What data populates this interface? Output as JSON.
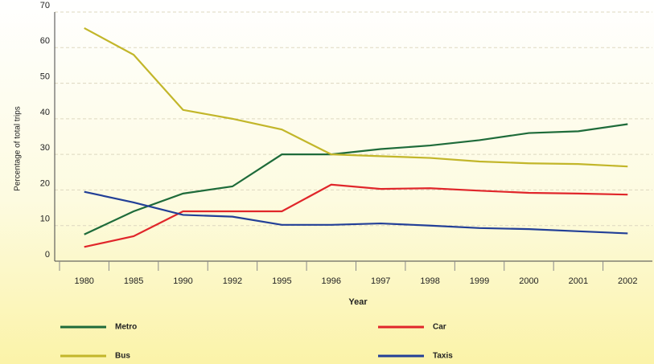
{
  "chart_data": {
    "type": "line",
    "ylabel": "Percentage of total trips",
    "xlabel": "Year",
    "categories": [
      "1980",
      "1985",
      "1990",
      "1992",
      "1995",
      "1996",
      "1997",
      "1998",
      "1999",
      "2000",
      "2001",
      "2002"
    ],
    "series": [
      {
        "name": "Metro",
        "color": "#1e6b3a",
        "values": [
          7.5,
          14,
          19,
          21,
          30,
          30,
          31.5,
          32.5,
          34,
          36,
          36.5,
          38.5
        ]
      },
      {
        "name": "Car",
        "color": "#e0262a",
        "values": [
          4,
          7,
          14,
          14,
          14,
          21.5,
          20.3,
          20.5,
          19.8,
          19.2,
          19,
          18.7
        ]
      },
      {
        "name": "Bus",
        "color": "#c2b62a",
        "values": [
          65.5,
          58,
          42.5,
          40,
          37,
          30,
          29.5,
          29,
          28,
          27.5,
          27.3,
          26.6
        ]
      },
      {
        "name": "Taxis",
        "color": "#223f97",
        "values": [
          19.5,
          16.5,
          13,
          12.5,
          10.2,
          10.2,
          10.6,
          10,
          9.3,
          9,
          8.4,
          7.8
        ]
      }
    ],
    "ylim": [
      0,
      70
    ],
    "yticks": [
      0,
      10,
      20,
      30,
      40,
      50,
      60,
      70
    ],
    "grid": true,
    "legend": "bottom"
  }
}
